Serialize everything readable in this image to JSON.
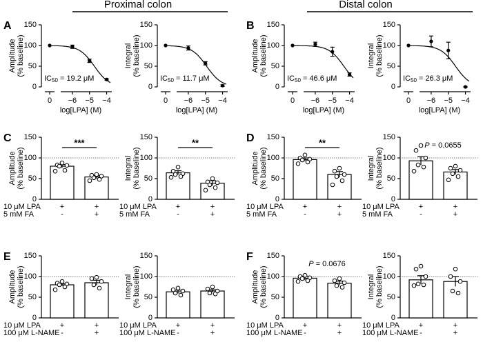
{
  "headers": [
    "Proximal colon",
    "Distal colon"
  ],
  "chart_data": [
    {
      "type": "line",
      "panel": "A",
      "ylabel": [
        "Amplitude",
        "(% baseline)"
      ],
      "xlabel": "log[LPA] (M)",
      "ylim": [
        0,
        150
      ],
      "yticks": [
        0,
        50,
        100,
        150
      ],
      "xlim": [
        -6.6,
        -3.7
      ],
      "xticks": [
        {
          "value": -6,
          "label": "−6"
        },
        {
          "value": -5,
          "label": "−5"
        },
        {
          "value": -4,
          "label": "−4"
        }
      ],
      "control_label": "0",
      "control_value": 100,
      "x": [
        -6,
        -5,
        -4
      ],
      "values": [
        97,
        63,
        18
      ],
      "errors": [
        4,
        4,
        2
      ],
      "ic50_symbol": "IC",
      "ic50_subscript": "50",
      "ic50": {
        "value": 19.2,
        "label": " = 19.2 μM"
      }
    },
    {
      "type": "line",
      "ylabel": [
        "Integral",
        "(% baseline)"
      ],
      "xlabel": "log[LPA] (M)",
      "ylim": [
        0,
        150
      ],
      "yticks": [
        0,
        50,
        100,
        150
      ],
      "xlim": [
        -6.6,
        -3.7
      ],
      "xticks": [
        {
          "value": -6,
          "label": "−6"
        },
        {
          "value": -5,
          "label": "−5"
        },
        {
          "value": -4,
          "label": "−4"
        }
      ],
      "control_label": "0",
      "control_value": 100,
      "x": [
        -6,
        -5,
        -4
      ],
      "values": [
        94,
        57,
        3
      ],
      "errors": [
        5,
        4,
        2
      ],
      "ic50_symbol": "IC",
      "ic50_subscript": "50",
      "ic50": {
        "value": 11.7,
        "label": " = 11.7 μM"
      }
    },
    {
      "type": "line",
      "panel": "B",
      "ylabel": [
        "Amplitude",
        "(% baseline)"
      ],
      "xlabel": "log[LPA] (M)",
      "ylim": [
        0,
        150
      ],
      "yticks": [
        0,
        50,
        100,
        150
      ],
      "xlim": [
        -6.6,
        -3.7
      ],
      "xticks": [
        {
          "value": -6,
          "label": "−6"
        },
        {
          "value": -5,
          "label": "−5"
        },
        {
          "value": -4,
          "label": "−4"
        }
      ],
      "control_label": "0",
      "control_value": 100,
      "x": [
        -6,
        -5,
        -4
      ],
      "values": [
        103,
        85,
        30
      ],
      "errors": [
        5,
        11,
        4
      ],
      "ic50_symbol": "IC",
      "ic50_subscript": "50",
      "ic50": {
        "value": 46.6,
        "label": " = 46.6 μM"
      }
    },
    {
      "type": "line",
      "ylabel": [
        "Integral",
        "(% baseline)"
      ],
      "xlabel": "log[LPA] (M)",
      "ylim": [
        0,
        150
      ],
      "yticks": [
        0,
        50,
        100,
        150
      ],
      "xlim": [
        -6.6,
        -3.7
      ],
      "xticks": [
        {
          "value": -6,
          "label": "−6"
        },
        {
          "value": -5,
          "label": "−5"
        },
        {
          "value": -4,
          "label": "−4"
        }
      ],
      "control_label": "0",
      "control_value": 100,
      "x": [
        -6,
        -5,
        -4
      ],
      "values": [
        110,
        88,
        0
      ],
      "errors": [
        13,
        20,
        1
      ],
      "ic50_symbol": "IC",
      "ic50_subscript": "50",
      "ic50": {
        "value": 26.3,
        "label": " = 26.3 μM"
      }
    },
    {
      "type": "bar",
      "panel": "C",
      "ylabel": [
        "Amplitude",
        "(% baseline)"
      ],
      "ylim": [
        0,
        150
      ],
      "yticks": [
        0,
        50,
        100,
        150
      ],
      "reference_line": 100,
      "values": [
        80,
        54
      ],
      "errors": [
        4,
        4
      ],
      "points": [
        [
          88,
          83,
          82,
          80,
          70,
          68
        ],
        [
          60,
          58,
          56,
          52,
          48,
          45
        ]
      ],
      "conditions": [
        {
          "label": "10 μM LPA",
          "signs": [
            "+",
            "+"
          ]
        },
        {
          "label": "5 mM FA",
          "signs": [
            "-",
            "+"
          ]
        }
      ],
      "annotation": "***"
    },
    {
      "type": "bar",
      "ylabel": [
        "Integral",
        "(% baseline)"
      ],
      "ylim": [
        0,
        150
      ],
      "yticks": [
        0,
        50,
        100,
        150
      ],
      "reference_line": 100,
      "values": [
        64,
        39
      ],
      "errors": [
        5,
        6
      ],
      "points": [
        [
          78,
          68,
          62,
          60,
          55,
          53
        ],
        [
          50,
          42,
          40,
          35,
          28,
          22
        ]
      ],
      "conditions": [
        {
          "label": "10 μM LPA",
          "signs": [
            "+",
            "+"
          ]
        },
        {
          "label": "5 mM FA",
          "signs": [
            "-",
            "+"
          ]
        }
      ],
      "annotation": "**"
    },
    {
      "type": "bar",
      "panel": "D",
      "ylabel": [
        "Amplitude",
        "(% baseline)"
      ],
      "ylim": [
        0,
        150
      ],
      "yticks": [
        0,
        50,
        100,
        150
      ],
      "reference_line": 100,
      "values": [
        96,
        60
      ],
      "errors": [
        4,
        7
      ],
      "points": [
        [
          107,
          100,
          97,
          95,
          90,
          86
        ],
        [
          75,
          68,
          60,
          55,
          45,
          35
        ]
      ],
      "conditions": [
        {
          "label": "10 μM LPA",
          "signs": [
            "+",
            "+"
          ]
        },
        {
          "label": "5 mM FA",
          "signs": [
            "-",
            "+"
          ]
        }
      ],
      "annotation": "**"
    },
    {
      "type": "bar",
      "ylabel": [
        "Integral",
        "(% baseline)"
      ],
      "ylim": [
        0,
        150
      ],
      "yticks": [
        0,
        50,
        100,
        150
      ],
      "reference_line": 100,
      "values": [
        93,
        66
      ],
      "errors": [
        10,
        6
      ],
      "points": [
        [
          130,
          118,
          100,
          83,
          78,
          68
        ],
        [
          80,
          75,
          70,
          62,
          55,
          47
        ]
      ],
      "conditions": [
        {
          "label": "10 μM LPA",
          "signs": [
            "+",
            "+"
          ]
        },
        {
          "label": "5 mM FA",
          "signs": [
            "-",
            "+"
          ]
        }
      ],
      "annotation": {
        "prefix": "P",
        "text": " = 0.0655"
      }
    },
    {
      "type": "bar",
      "panel": "E",
      "ylabel": [
        "Amplitude",
        "(% baseline)"
      ],
      "ylim": [
        0,
        150
      ],
      "yticks": [
        0,
        50,
        100,
        150
      ],
      "reference_line": 100,
      "values": [
        80,
        85
      ],
      "errors": [
        3,
        6
      ],
      "points": [
        [
          88,
          84,
          82,
          80,
          75,
          68
        ],
        [
          98,
          95,
          88,
          80,
          72
        ]
      ],
      "conditions": [
        {
          "label": "10 μM LPA",
          "signs": [
            "+",
            "+"
          ]
        },
        {
          "label": "100 μM L-NAME",
          "signs": [
            "-",
            "+"
          ]
        }
      ]
    },
    {
      "type": "bar",
      "ylabel": [
        "Integral",
        "(% baseline)"
      ],
      "ylim": [
        0,
        150
      ],
      "yticks": [
        0,
        50,
        100,
        150
      ],
      "reference_line": 100,
      "values": [
        63,
        65
      ],
      "errors": [
        4,
        3
      ],
      "points": [
        [
          72,
          68,
          65,
          60,
          55
        ],
        [
          75,
          70,
          65,
          60,
          58
        ]
      ],
      "conditions": [
        {
          "label": "10 μM LPA",
          "signs": [
            "+",
            "+"
          ]
        },
        {
          "label": "100 μM L-NAME",
          "signs": [
            "-",
            "+"
          ]
        }
      ]
    },
    {
      "type": "bar",
      "panel": "F",
      "ylabel": [
        "Amplitude",
        "(% baseline)"
      ],
      "ylim": [
        0,
        150
      ],
      "yticks": [
        0,
        50,
        100,
        150
      ],
      "reference_line": 100,
      "values": [
        96,
        84
      ],
      "errors": [
        5,
        5
      ],
      "points": [
        [
          103,
          100,
          97,
          95,
          90,
          88
        ],
        [
          95,
          90,
          85,
          78,
          74
        ]
      ],
      "conditions": [
        {
          "label": "10 μM LPA",
          "signs": [
            "+",
            "+"
          ]
        },
        {
          "label": "100 μM L-NAME",
          "signs": [
            "-",
            "+"
          ]
        }
      ],
      "annotation": {
        "prefix": "P",
        "text": " = 0.0676"
      }
    },
    {
      "type": "bar",
      "ylabel": [
        "Integral",
        "(% baseline)"
      ],
      "ylim": [
        0,
        150
      ],
      "yticks": [
        0,
        50,
        100,
        150
      ],
      "reference_line": 100,
      "values": [
        92,
        88
      ],
      "errors": [
        10,
        12
      ],
      "points": [
        [
          125,
          118,
          100,
          82,
          80,
          78
        ],
        [
          118,
          100,
          88,
          65,
          60
        ]
      ],
      "conditions": [
        {
          "label": "10 μM LPA",
          "signs": [
            "+",
            "+"
          ]
        },
        {
          "label": "100 μM L-NAME",
          "signs": [
            "-",
            "+"
          ]
        }
      ]
    }
  ]
}
